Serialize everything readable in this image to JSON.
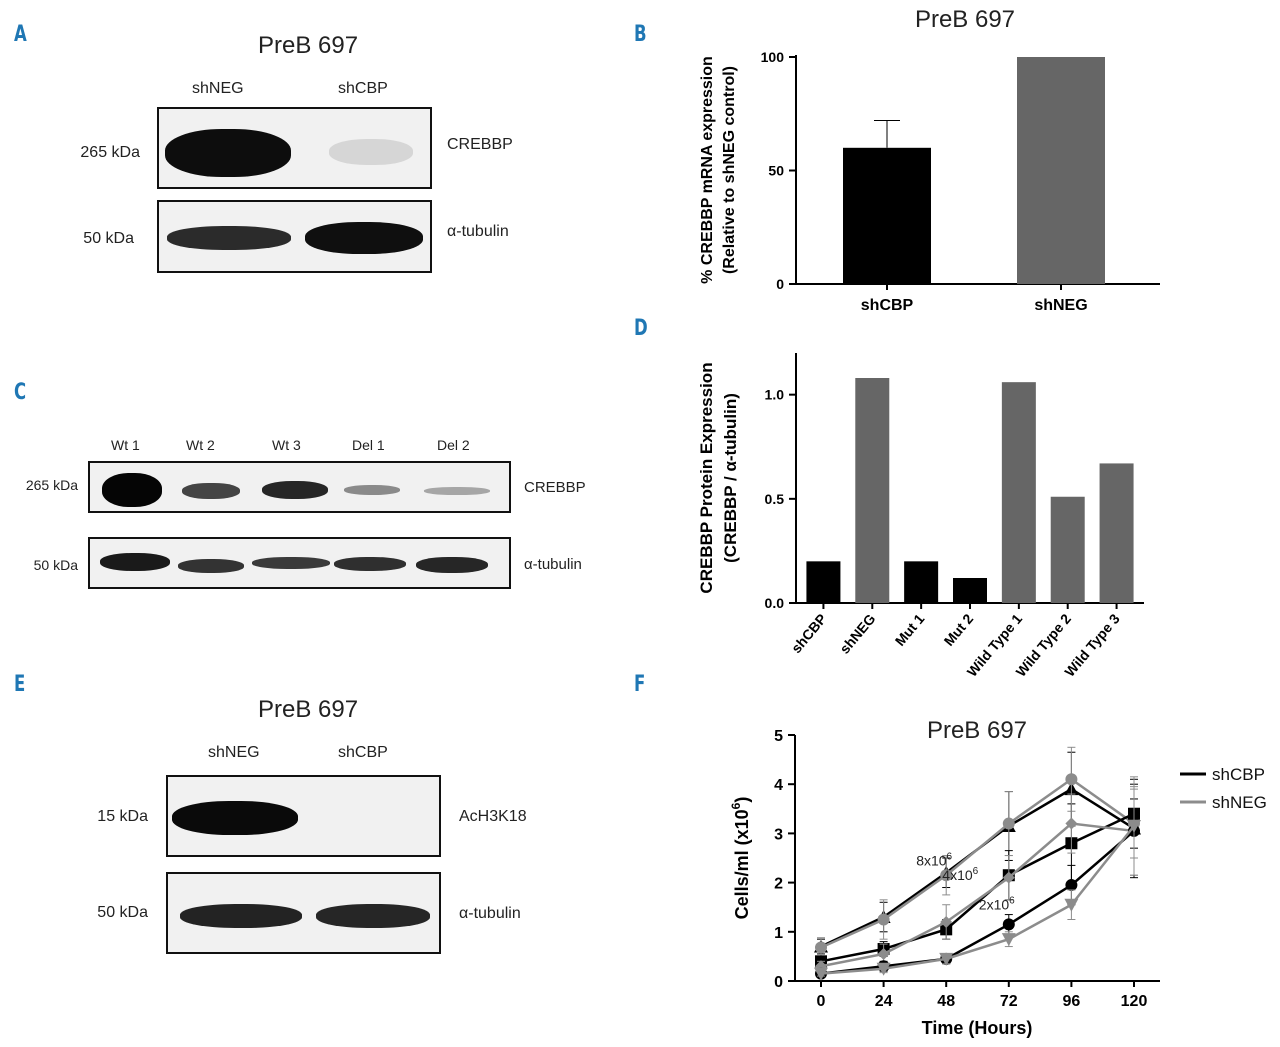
{
  "panels": {
    "A": {
      "letter": "A",
      "title": "PreB 697",
      "lanes": [
        "shNEG",
        "shCBP"
      ],
      "rows": [
        {
          "kda": "265 kDa",
          "protein": "CREBBP",
          "intensity": [
            1.0,
            0.15
          ]
        },
        {
          "kda": "50 kDa",
          "protein": "α-tubulin",
          "intensity": [
            0.85,
            0.95
          ]
        }
      ]
    },
    "C": {
      "letter": "C",
      "lanes": [
        "Wt 1",
        "Wt 2",
        "Wt 3",
        "Del 1",
        "Del 2"
      ],
      "rows": [
        {
          "kda": "265 kDa",
          "protein": "CREBBP",
          "intensity": [
            1.0,
            0.6,
            0.75,
            0.3,
            0.2
          ]
        },
        {
          "kda": "50 kDa",
          "protein": "α-tubulin",
          "intensity": [
            0.9,
            0.75,
            0.7,
            0.75,
            0.8
          ]
        }
      ]
    },
    "E": {
      "letter": "E",
      "title": "PreB 697",
      "lanes": [
        "shNEG",
        "shCBP"
      ],
      "rows": [
        {
          "kda": "15 kDa",
          "protein": "AcH3K18",
          "intensity": [
            0.95,
            0.02
          ]
        },
        {
          "kda": "50 kDa",
          "protein": "α-tubulin",
          "intensity": [
            0.85,
            0.85
          ]
        }
      ]
    },
    "B": {
      "letter": "B"
    },
    "D": {
      "letter": "D"
    },
    "F": {
      "letter": "F"
    }
  },
  "chart_data": [
    {
      "id": "B",
      "type": "bar",
      "title": "PreB 697",
      "categories": [
        "shCBP",
        "shNEG"
      ],
      "values": [
        60,
        100
      ],
      "error": [
        12,
        0
      ],
      "colors": [
        "#000000",
        "#666666"
      ],
      "ylabel_line1": "% CREBBP mRNA expression",
      "ylabel_line2": "(Relative to shNEG control)",
      "ylim": [
        0,
        100
      ],
      "yticks": [
        "0",
        "50",
        "100"
      ]
    },
    {
      "id": "D",
      "type": "bar",
      "categories": [
        "shCBP",
        "shNEG",
        "Mut 1",
        "Mut 2",
        "Wild Type 1",
        "Wild  Type 2",
        "Wild Type 3"
      ],
      "values": [
        0.2,
        1.08,
        0.2,
        0.12,
        1.06,
        0.51,
        0.67
      ],
      "colors": [
        "#000000",
        "#666666",
        "#000000",
        "#000000",
        "#666666",
        "#666666",
        "#666666"
      ],
      "ylabel_line1": "CREBBP Protein Expression",
      "ylabel_line2": "(CREBBP / α-tubulin)",
      "ylim": [
        0,
        1.2
      ],
      "yticks": [
        "0.0",
        "0.5",
        "1.0"
      ]
    },
    {
      "id": "F",
      "type": "line",
      "title": "PreB 697",
      "xlabel": "Time (Hours)",
      "ylabel": "Cells/ml (x10",
      "ylabel_sup": "6",
      "ylabel_end": ")",
      "x": [
        0,
        24,
        48,
        72,
        96,
        120
      ],
      "xticks": [
        "0",
        "24",
        "48",
        "72",
        "96",
        "120"
      ],
      "yticks": [
        "0",
        "1",
        "2",
        "3",
        "4",
        "5"
      ],
      "ylim": [
        0,
        5
      ],
      "legend": [
        {
          "name": "shCBP",
          "color": "#000000"
        },
        {
          "name": "shNEG",
          "color": "#8c8c8c"
        }
      ],
      "series": [
        {
          "name": "shCBP",
          "marker": "triangle",
          "color": "#000000",
          "values": [
            0.7,
            1.3,
            2.2,
            3.15,
            3.9,
            3.1
          ],
          "err": [
            0.15,
            0.3,
            0.3,
            0.7,
            0.75,
            0.6
          ]
        },
        {
          "name": "shNEG",
          "marker": "circle",
          "color": "#8c8c8c",
          "values": [
            0.68,
            1.25,
            2.15,
            3.2,
            4.1,
            3.2
          ],
          "err": [
            0.2,
            0.4,
            0.4,
            0.65,
            0.65,
            0.7
          ]
        },
        {
          "name": "shCBP",
          "marker": "square",
          "color": "#000000",
          "values": [
            0.4,
            0.65,
            1.05,
            2.15,
            2.8,
            3.4
          ],
          "err": [
            0.1,
            0.15,
            0.2,
            0.5,
            0.8,
            0.7
          ]
        },
        {
          "name": "shNEG",
          "marker": "diamond",
          "color": "#8c8c8c",
          "values": [
            0.3,
            0.55,
            1.2,
            2.1,
            3.2,
            3.05
          ],
          "err": [
            0.1,
            0.2,
            0.35,
            0.45,
            0.6,
            0.9
          ]
        },
        {
          "name": "shCBP",
          "marker": "circle",
          "color": "#000000",
          "values": [
            0.15,
            0.3,
            0.45,
            1.15,
            1.95,
            3.05
          ],
          "err": [
            0.05,
            0.1,
            0.1,
            0.2,
            0.4,
            0.95
          ]
        },
        {
          "name": "shNEG",
          "marker": "invtriangle",
          "color": "#8c8c8c",
          "values": [
            0.15,
            0.25,
            0.45,
            0.85,
            1.55,
            3.15
          ],
          "err": [
            0.05,
            0.08,
            0.1,
            0.15,
            0.3,
            1.0
          ]
        }
      ],
      "annotations": [
        {
          "base": "8x10",
          "sup": "6",
          "x": 48,
          "y": 2.35
        },
        {
          "base": "4x10",
          "sup": "6",
          "x": 58,
          "y": 2.05
        },
        {
          "base": "2x10",
          "sup": "6",
          "x": 72,
          "y": 1.45
        }
      ]
    }
  ]
}
